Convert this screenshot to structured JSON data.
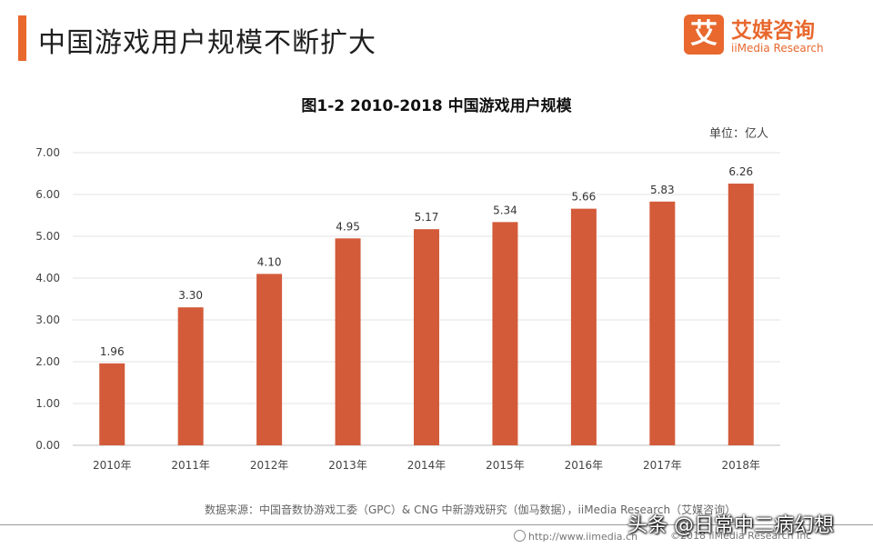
{
  "header": {
    "title": "中国游戏用户规模不断扩大",
    "accent_color": "#e8682e"
  },
  "logo": {
    "mark": "艾",
    "name_cn": "艾媒咨询",
    "name_en": "iiMedia Research",
    "color": "#e8682e"
  },
  "chart_data": {
    "type": "bar",
    "title": "图1-2 2010-2018 中国游戏用户规模",
    "unit": "单位：亿人",
    "categories": [
      "2010年",
      "2011年",
      "2012年",
      "2013年",
      "2014年",
      "2015年",
      "2016年",
      "2017年",
      "2018年"
    ],
    "values": [
      1.96,
      3.3,
      4.1,
      4.95,
      5.17,
      5.34,
      5.66,
      5.83,
      6.26
    ],
    "value_labels": [
      "1.96",
      "3.30",
      "4.10",
      "4.95",
      "5.17",
      "5.34",
      "5.66",
      "5.83",
      "6.26"
    ],
    "ylim": [
      0,
      7
    ],
    "y_ticks": [
      "0.00",
      "1.00",
      "2.00",
      "3.00",
      "4.00",
      "5.00",
      "6.00",
      "7.00"
    ],
    "grid": true,
    "bar_color": "#d35b3a"
  },
  "footer": {
    "source": "数据来源：中国音数协游戏工委（GPC）& CNG 中新游戏研究（伽马数据），iiMedia Research（艾媒咨询）",
    "url": "http://www.iimedia.cn",
    "copyright": "©2018  iiMedia Research Inc"
  },
  "watermark": "头条 @日常中二病幻想"
}
